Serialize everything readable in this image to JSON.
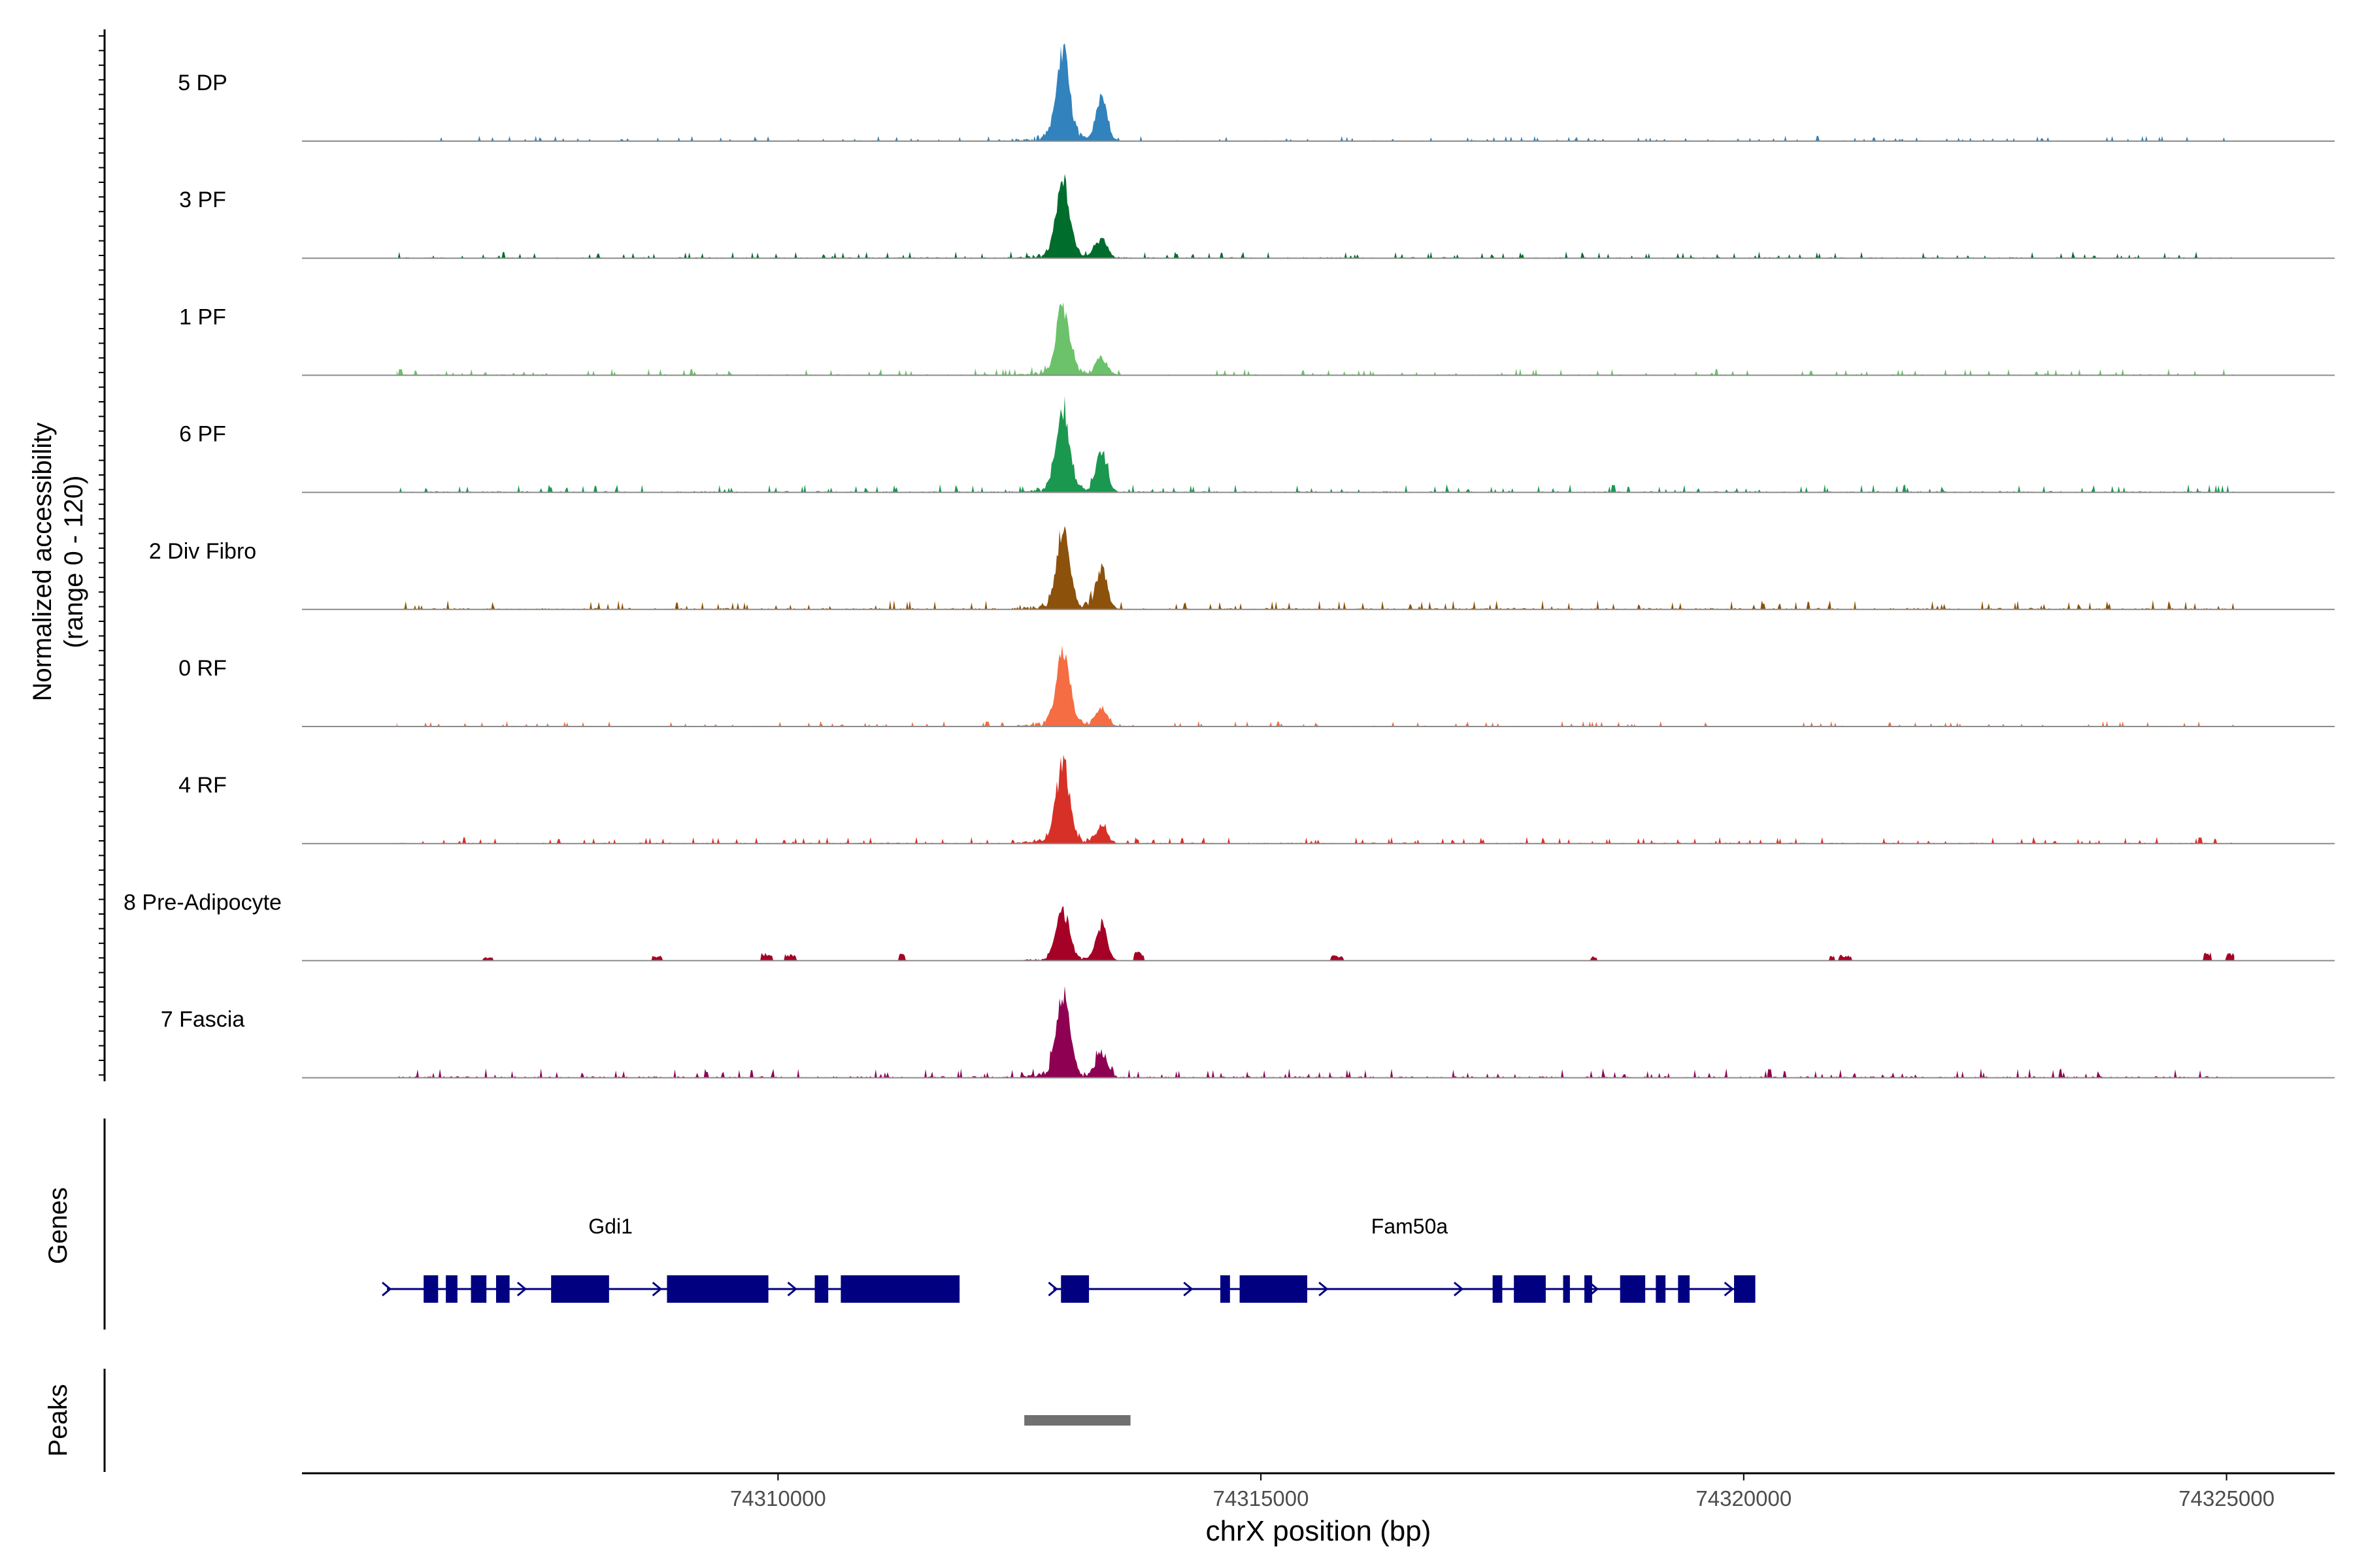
{
  "chart_data": {
    "type": "area",
    "title": "",
    "ylabel_line1": "Normalized accessibility",
    "ylabel_line2": "(range 0 - 120)",
    "y_range": [
      0,
      120
    ],
    "xlabel": "chrX position (bp)",
    "x_range": [
      74305070,
      74326120
    ],
    "x_ticks": [
      {
        "value": 74310000,
        "label": "74310000"
      },
      {
        "value": 74315000,
        "label": "74315000"
      },
      {
        "value": 74320000,
        "label": "74320000"
      },
      {
        "value": 74325000,
        "label": "74325000"
      }
    ],
    "tracks": [
      {
        "name": "5 DP",
        "color": "#3182bd",
        "peak_main": 95,
        "peak_second": 45,
        "noise": 4
      },
      {
        "name": "3 PF",
        "color": "#006d2c",
        "peak_main": 82,
        "peak_second": 22,
        "noise": 5
      },
      {
        "name": "1 PF",
        "color": "#6cc26a",
        "peak_main": 72,
        "peak_second": 20,
        "noise": 5
      },
      {
        "name": "6 PF",
        "color": "#1a9850",
        "peak_main": 85,
        "peak_second": 45,
        "noise": 6
      },
      {
        "name": "2 Div Fibro",
        "color": "#8c510a",
        "peak_main": 84,
        "peak_second": 46,
        "noise": 7
      },
      {
        "name": "0 RF",
        "color": "#f46d43",
        "peak_main": 80,
        "peak_second": 20,
        "noise": 4
      },
      {
        "name": "4 RF",
        "color": "#d73027",
        "peak_main": 84,
        "peak_second": 18,
        "noise": 5
      },
      {
        "name": "8 Pre-Adipocyte",
        "color": "#a50026",
        "peak_main": 52,
        "peak_second": 40,
        "noise": 8
      },
      {
        "name": "7 Fascia",
        "color": "#8e0152",
        "peak_main": 88,
        "peak_second": 28,
        "noise": 7
      }
    ],
    "main_peak_position": 74312950,
    "second_peak_position": 74313350,
    "genes_label": "Genes",
    "genes": [
      {
        "name": "Gdi1",
        "start": 74305950,
        "end": 74311880,
        "strand": "+",
        "exons": [
          [
            74306330,
            74306480
          ],
          [
            74306560,
            74306680
          ],
          [
            74306820,
            74306980
          ],
          [
            74307080,
            74307220
          ],
          [
            74307650,
            74308250
          ],
          [
            74308850,
            74309900
          ],
          [
            74310380,
            74310520
          ],
          [
            74310650,
            74311880
          ]
        ]
      },
      {
        "name": "Fam50a",
        "start": 74312850,
        "end": 74320120,
        "strand": "+",
        "exons": [
          [
            74312930,
            74313220
          ],
          [
            74314580,
            74314680
          ],
          [
            74314780,
            74315480
          ],
          [
            74317400,
            74317500
          ],
          [
            74317620,
            74317950
          ],
          [
            74318130,
            74318200
          ],
          [
            74318350,
            74318430
          ],
          [
            74318720,
            74318980
          ],
          [
            74319090,
            74319190
          ],
          [
            74319320,
            74319440
          ],
          [
            74319900,
            74320120
          ]
        ]
      }
    ],
    "gene_color": "#000080",
    "peaks_label": "Peaks",
    "peaks": [
      {
        "start": 74312550,
        "end": 74313650
      }
    ],
    "peak_color": "#707070"
  }
}
